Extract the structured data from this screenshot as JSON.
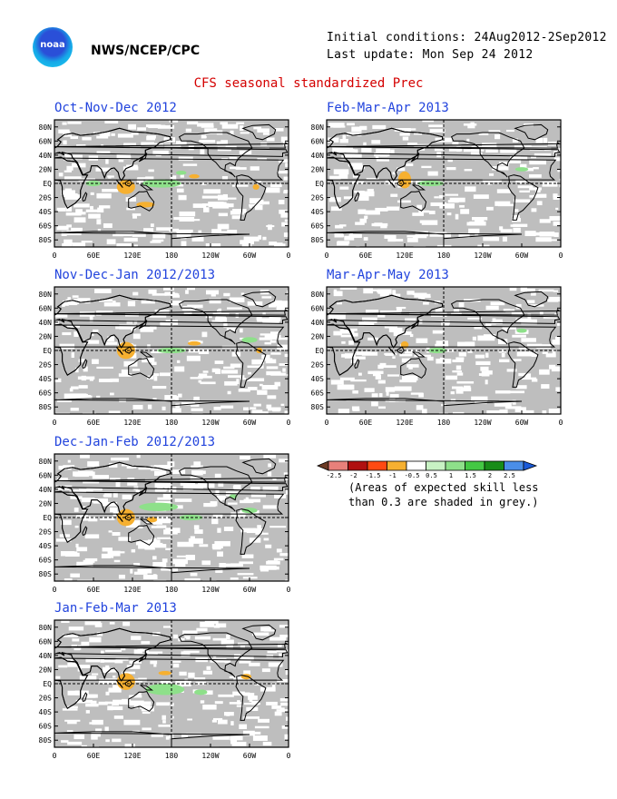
{
  "header": {
    "logo_text": "noaa",
    "agency": "NWS/NCEP/CPC",
    "initial_conditions": "Initial conditions: 24Aug2012-2Sep2012",
    "last_update": "Last update: Mon Sep 24 2012",
    "title": "CFS seasonal standardized Prec"
  },
  "map_axes": {
    "y_labels": [
      "80N",
      "60N",
      "40N",
      "20N",
      "EQ",
      "20S",
      "40S",
      "60S",
      "80S"
    ],
    "x_labels": [
      "0",
      "60E",
      "120E",
      "180",
      "120W",
      "60W",
      "0"
    ]
  },
  "panels": [
    {
      "title": "Oct-Nov-Dec 2012"
    },
    {
      "title": "Feb-Mar-Apr 2013"
    },
    {
      "title": "Nov-Dec-Jan 2012/2013"
    },
    {
      "title": "Mar-Apr-May 2013"
    },
    {
      "title": "Dec-Jan-Feb 2012/2013"
    },
    {
      "title": "Jan-Feb-Mar 2013"
    }
  ],
  "legend": {
    "labels": [
      "-2.5",
      "-2",
      "-1.5",
      "-1",
      "-0.5",
      "0.5",
      "1",
      "1.5",
      "2",
      "2.5"
    ],
    "colors": [
      "#6b3a24",
      "#e8807a",
      "#b01010",
      "#ff4a12",
      "#f6b030",
      "#ffffff",
      "#c8f2c4",
      "#8ee08a",
      "#44c844",
      "#188c18",
      "#4a8ee8",
      "#1a5ad8"
    ],
    "note_line1": "(Areas of expected skill less",
    "note_line2": "than 0.3 are shaded in grey.)"
  },
  "colors": {
    "grey_mask": "#bebebe",
    "title_red": "#d40000",
    "panel_title_blue": "#2244dd",
    "positive": "#8ee08a",
    "negative": "#f6b030"
  }
}
